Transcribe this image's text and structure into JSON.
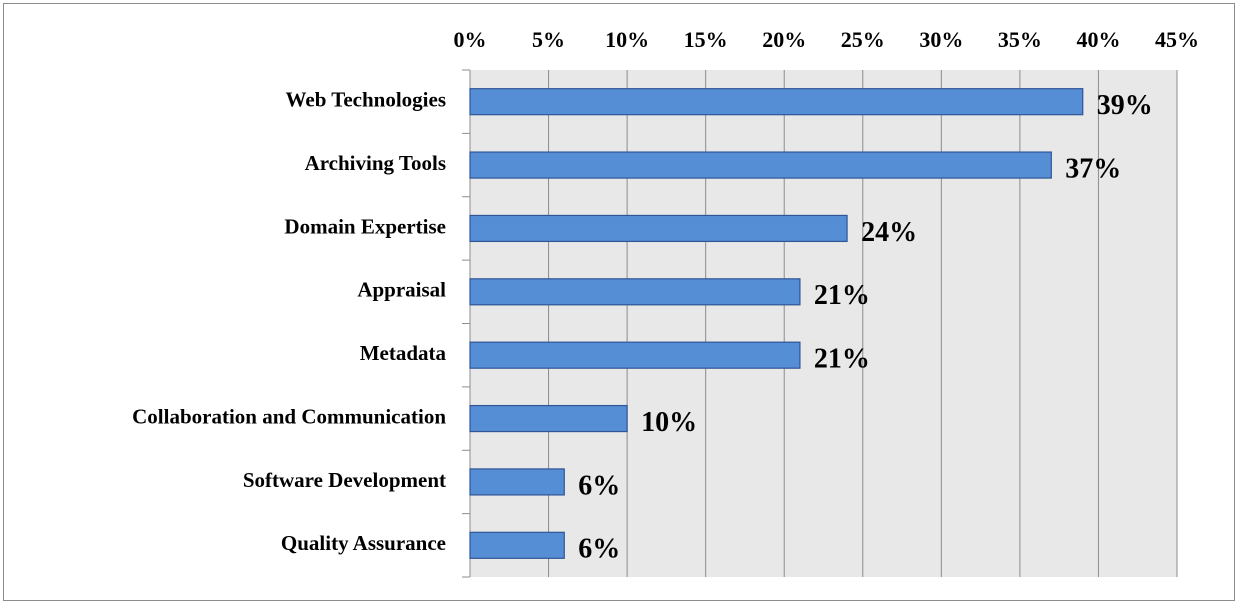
{
  "chart_data": {
    "type": "bar",
    "orientation": "horizontal",
    "categories": [
      "Web Technologies",
      "Archiving Tools",
      "Domain Expertise",
      "Appraisal",
      "Metadata",
      "Collaboration and Communication",
      "Software Development",
      "Quality Assurance"
    ],
    "values": [
      39,
      37,
      24,
      21,
      21,
      10,
      6,
      6
    ],
    "value_labels": [
      "39%",
      "37%",
      "24%",
      "21%",
      "21%",
      "10%",
      "6%",
      "6%"
    ],
    "color": "#558ed5",
    "xlim": [
      0,
      45
    ],
    "xticks": [
      {
        "value": 0,
        "label": "0%"
      },
      {
        "value": 5,
        "label": "5%"
      },
      {
        "value": 10,
        "label": "10%"
      },
      {
        "value": 15,
        "label": "15%"
      },
      {
        "value": 20,
        "label": "20%"
      },
      {
        "value": 25,
        "label": "25%"
      },
      {
        "value": 30,
        "label": "30%"
      },
      {
        "value": 35,
        "label": "35%"
      },
      {
        "value": 40,
        "label": "40%"
      },
      {
        "value": 45,
        "label": "45%"
      }
    ],
    "grid": true
  }
}
